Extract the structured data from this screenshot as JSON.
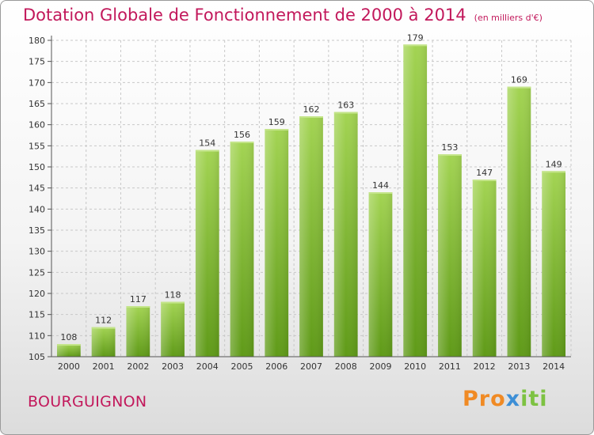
{
  "header": {
    "title": "Dotation Globale de Fonctionnement de 2000 à 2014",
    "subtitle": "(en milliers d'€)"
  },
  "footer": {
    "commune": "BOURGUIGNON",
    "logo_parts": [
      "Pro",
      "x",
      "iti"
    ]
  },
  "colors": {
    "title": "#c2185b",
    "bar_light": "#9fd04f",
    "bar_dark": "#5f9a18",
    "grid": "#c8c8c8"
  },
  "chart_data": {
    "type": "bar",
    "title": "Dotation Globale de Fonctionnement de 2000 à 2014",
    "categories": [
      "2000",
      "2001",
      "2002",
      "2003",
      "2004",
      "2005",
      "2006",
      "2007",
      "2008",
      "2009",
      "2010",
      "2011",
      "2012",
      "2013",
      "2014"
    ],
    "values": [
      108,
      112,
      117,
      118,
      154,
      156,
      159,
      162,
      163,
      144,
      179,
      153,
      147,
      169,
      149
    ],
    "ylim": [
      105,
      180
    ],
    "yticks": [
      105,
      110,
      115,
      120,
      125,
      130,
      135,
      140,
      145,
      150,
      155,
      160,
      165,
      170,
      175,
      180
    ],
    "grid": true,
    "data_labels": true
  }
}
